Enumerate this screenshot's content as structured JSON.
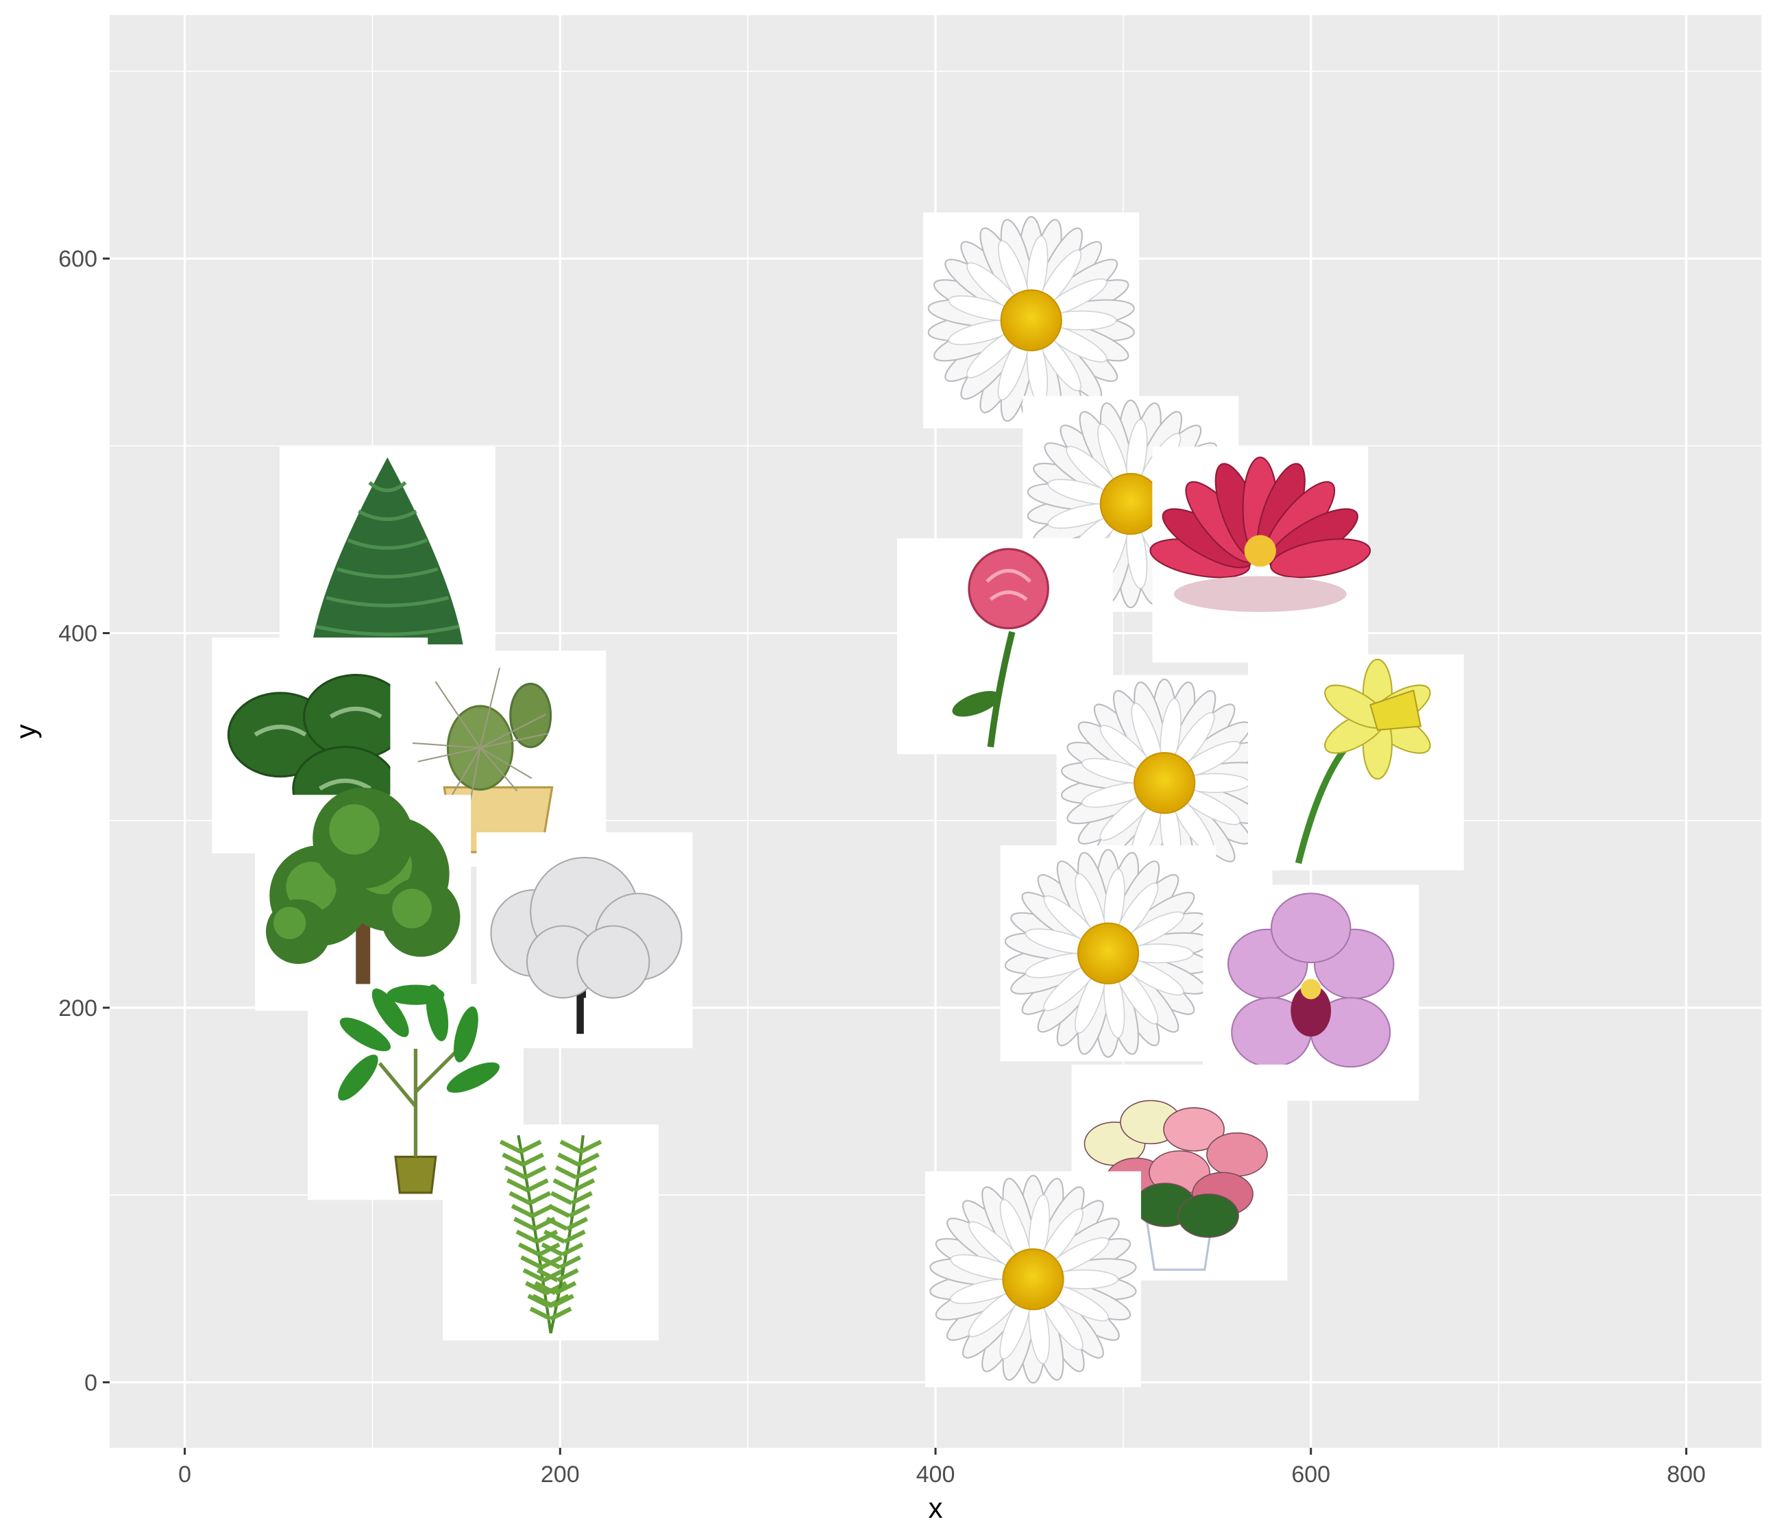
{
  "chart_data": {
    "type": "scatter",
    "marker": "image-thumbnail",
    "xlabel": "x",
    "ylabel": "y",
    "xlim": [
      -40,
      840
    ],
    "ylim": [
      -35,
      730
    ],
    "x_ticks": [
      0,
      200,
      400,
      600,
      800
    ],
    "y_ticks": [
      0,
      200,
      400,
      600
    ],
    "grid": true,
    "legend": "none",
    "thumb_size": 115,
    "background": "#ebebeb",
    "grid_color": "#ffffff",
    "points": [
      {
        "name": "conifer-tree",
        "x": 108,
        "y": 442
      },
      {
        "name": "clover-leaf",
        "x": 72,
        "y": 340
      },
      {
        "name": "potted-cactus",
        "x": 167,
        "y": 333
      },
      {
        "name": "green-tree",
        "x": 95,
        "y": 256
      },
      {
        "name": "white-blossom-tree",
        "x": 213,
        "y": 236
      },
      {
        "name": "money-tree-plant",
        "x": 123,
        "y": 155
      },
      {
        "name": "fern",
        "x": 195,
        "y": 80
      },
      {
        "name": "daisy",
        "x": 451,
        "y": 567
      },
      {
        "name": "daisy",
        "x": 504,
        "y": 469
      },
      {
        "name": "water-lily",
        "x": 573,
        "y": 442
      },
      {
        "name": "pink-rose",
        "x": 437,
        "y": 393
      },
      {
        "name": "daisy",
        "x": 522,
        "y": 320
      },
      {
        "name": "yellow-daffodil",
        "x": 624,
        "y": 331
      },
      {
        "name": "daisy",
        "x": 492,
        "y": 229
      },
      {
        "name": "purple-orchid",
        "x": 600,
        "y": 208
      },
      {
        "name": "poinsettia",
        "x": 530,
        "y": 112
      },
      {
        "name": "daisy",
        "x": 452,
        "y": 55
      }
    ]
  }
}
